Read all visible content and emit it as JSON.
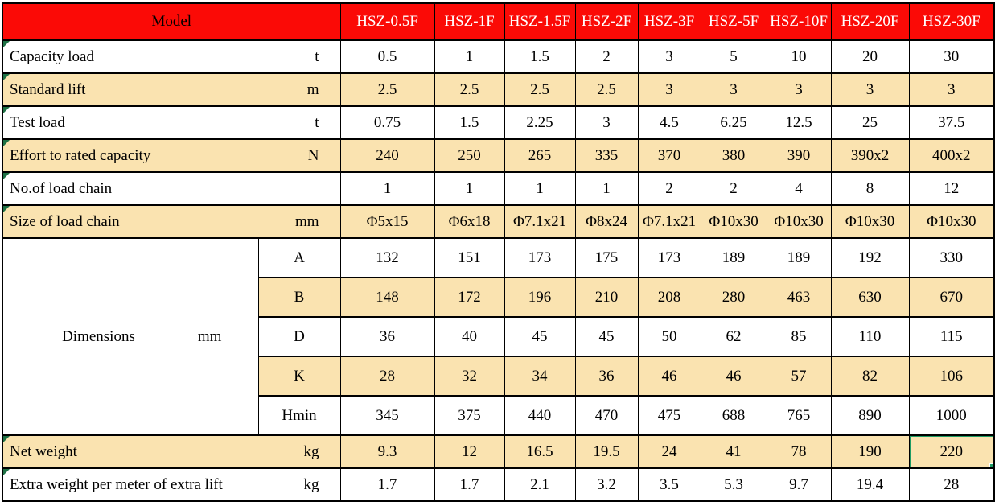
{
  "colors": {
    "header_bg": "#fb0a06",
    "header_model_text": "#000000",
    "header_model_names_text": "#ffffff",
    "row_shade": "#fae3b0",
    "grid": "#000000",
    "selection_border": "#1f9c64",
    "error_flag": "#1e7145"
  },
  "table": {
    "header": {
      "model_label": "Model",
      "models": [
        "HSZ-0.5F",
        "HSZ-1F",
        "HSZ-1.5F",
        "HSZ-2F",
        "HSZ-3F",
        "HSZ-5F",
        "HSZ-10F",
        "HSZ-20F",
        "HSZ-30F"
      ]
    },
    "dimensions_group": {
      "label": "Dimensions",
      "unit": "mm",
      "rowspan": 5
    },
    "rows": [
      {
        "type": "simple",
        "label": "Capacity load",
        "unit": "t",
        "shaded": false,
        "flagged": true,
        "values": [
          "0.5",
          "1",
          "1.5",
          "2",
          "3",
          "5",
          "10",
          "20",
          "30"
        ]
      },
      {
        "type": "simple",
        "label": "Standard lift",
        "unit": "m",
        "shaded": true,
        "flagged": true,
        "values": [
          "2.5",
          "2.5",
          "2.5",
          "2.5",
          "3",
          "3",
          "3",
          "3",
          "3"
        ]
      },
      {
        "type": "simple",
        "label": "Test load",
        "unit": "t",
        "shaded": false,
        "flagged": true,
        "values": [
          "0.75",
          "1.5",
          "2.25",
          "3",
          "4.5",
          "6.25",
          "12.5",
          "25",
          "37.5"
        ]
      },
      {
        "type": "simple",
        "label": "Effort to rated capacity",
        "unit": "N",
        "shaded": true,
        "flagged": true,
        "values": [
          "240",
          "250",
          "265",
          "335",
          "370",
          "380",
          "390",
          "390x2",
          "400x2"
        ]
      },
      {
        "type": "simple",
        "label": "No.of load chain",
        "unit": "",
        "shaded": false,
        "flagged": true,
        "values": [
          "1",
          "1",
          "1",
          "1",
          "2",
          "2",
          "4",
          "8",
          "12"
        ]
      },
      {
        "type": "simple",
        "label": "Size of load chain",
        "unit": "mm",
        "shaded": true,
        "flagged": true,
        "values": [
          "Φ5x15",
          "Φ6x18",
          "Φ7.1x21",
          "Φ8x24",
          "Φ7.1x21",
          "Φ10x30",
          "Φ10x30",
          "Φ10x30",
          "Φ10x30"
        ]
      },
      {
        "type": "dim",
        "sub": "A",
        "shaded": false,
        "values": [
          "132",
          "151",
          "173",
          "175",
          "173",
          "189",
          "189",
          "192",
          "330"
        ]
      },
      {
        "type": "dim",
        "sub": "B",
        "shaded": true,
        "values": [
          "148",
          "172",
          "196",
          "210",
          "208",
          "280",
          "463",
          "630",
          "670"
        ]
      },
      {
        "type": "dim",
        "sub": "D",
        "shaded": false,
        "values": [
          "36",
          "40",
          "45",
          "45",
          "50",
          "62",
          "85",
          "110",
          "115"
        ]
      },
      {
        "type": "dim",
        "sub": "K",
        "shaded": true,
        "values": [
          "28",
          "32",
          "34",
          "36",
          "46",
          "46",
          "57",
          "82",
          "106"
        ]
      },
      {
        "type": "dim",
        "sub": "Hmin",
        "shaded": false,
        "values": [
          "345",
          "375",
          "440",
          "470",
          "475",
          "688",
          "765",
          "890",
          "1000"
        ]
      },
      {
        "type": "simple",
        "label": "Net weight",
        "unit": "kg",
        "shaded": true,
        "flagged": true,
        "values": [
          "9.3",
          "12",
          "16.5",
          "19.5",
          "24",
          "41",
          "78",
          "190",
          "220"
        ]
      },
      {
        "type": "simple",
        "label": "Extra weight per meter of extra lift",
        "unit": "kg",
        "shaded": false,
        "flagged": true,
        "values": [
          "1.7",
          "1.7",
          "2.1",
          "3.2",
          "3.5",
          "5.3",
          "9.7",
          "19.4",
          "28"
        ]
      }
    ],
    "selection": {
      "row_label": "Net weight",
      "model": "HSZ-30F",
      "value": "220",
      "row_index": 11,
      "col_index": 8
    }
  }
}
